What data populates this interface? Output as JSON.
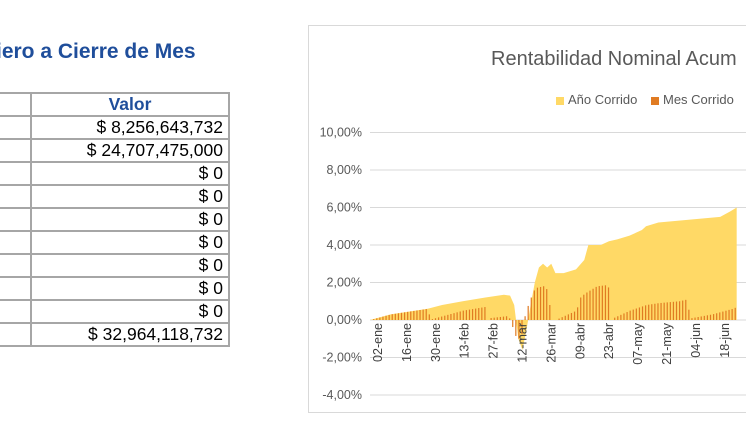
{
  "table": {
    "title": "iero a Cierre de Mes",
    "header": "Valor",
    "rows": [
      "$ 8,256,643,732",
      "$ 24,707,475,000",
      "$ 0",
      "$ 0",
      "$ 0",
      "$ 0",
      "$ 0",
      "$ 0",
      "$ 0",
      "$ 32,964,118,732"
    ]
  },
  "chart_data": {
    "type": "area",
    "title": "Rentabilidad Nominal Acum",
    "legend": [
      {
        "name": "Año Corrido",
        "color": "#FFD966"
      },
      {
        "name": "Mes Corrido",
        "color": "#E07B22"
      }
    ],
    "legend_position": "top",
    "y_ticks": [
      "10,00%",
      "8,00%",
      "6,00%",
      "4,00%",
      "2,00%",
      "0,00%",
      "-2,00%",
      "-4,00%"
    ],
    "ylim": [
      -4,
      10
    ],
    "x_ticks": [
      "02-ene",
      "16-ene",
      "30-ene",
      "13-feb",
      "27-feb",
      "12-mar",
      "26-mar",
      "09-abr",
      "23-abr",
      "07-may",
      "21-may",
      "04-jun",
      "18-jun"
    ],
    "grid": true,
    "series": [
      {
        "name": "Año Corrido",
        "points": [
          [
            0,
            0
          ],
          [
            10,
            0.3
          ],
          [
            28,
            0.6
          ],
          [
            35,
            0.8
          ],
          [
            45,
            1.0
          ],
          [
            56,
            1.2
          ],
          [
            65,
            1.35
          ],
          [
            68,
            1.3
          ],
          [
            70,
            0.8
          ],
          [
            72,
            -1.0
          ],
          [
            74,
            -1.6
          ],
          [
            76,
            -0.5
          ],
          [
            78,
            0.8
          ],
          [
            80,
            2.0
          ],
          [
            82,
            2.8
          ],
          [
            84,
            3.0
          ],
          [
            86,
            2.8
          ],
          [
            88,
            3.0
          ],
          [
            90,
            2.5
          ],
          [
            94,
            2.5
          ],
          [
            100,
            2.7
          ],
          [
            104,
            3.2
          ],
          [
            106,
            4.0
          ],
          [
            112,
            4.0
          ],
          [
            116,
            4.2
          ],
          [
            120,
            4.3
          ],
          [
            126,
            4.5
          ],
          [
            132,
            4.8
          ],
          [
            134,
            5.0
          ],
          [
            140,
            5.2
          ],
          [
            150,
            5.3
          ],
          [
            160,
            5.4
          ],
          [
            170,
            5.5
          ],
          [
            175,
            5.8
          ],
          [
            178,
            6.0
          ]
        ]
      },
      {
        "name": "Mes Corrido",
        "points": [
          [
            0,
            0
          ],
          [
            10,
            0.3
          ],
          [
            28,
            0.6
          ],
          [
            29,
            0
          ],
          [
            30,
            0.05
          ],
          [
            45,
            0.5
          ],
          [
            56,
            0.7
          ],
          [
            57,
            0
          ],
          [
            58,
            0.1
          ],
          [
            66,
            0.2
          ],
          [
            68,
            0.05
          ],
          [
            70,
            -0.8
          ],
          [
            72,
            -1.0
          ],
          [
            73,
            -1.3
          ],
          [
            74,
            -0.2
          ],
          [
            76,
            0.6
          ],
          [
            78,
            1.2
          ],
          [
            80,
            1.7
          ],
          [
            84,
            1.8
          ],
          [
            86,
            1.6
          ],
          [
            88,
            0
          ],
          [
            90,
            0
          ],
          [
            94,
            0.2
          ],
          [
            100,
            0.5
          ],
          [
            102,
            1.2
          ],
          [
            104,
            1.4
          ],
          [
            110,
            1.8
          ],
          [
            114,
            1.85
          ],
          [
            116,
            1.7
          ],
          [
            117,
            0
          ],
          [
            118,
            0.1
          ],
          [
            126,
            0.5
          ],
          [
            134,
            0.8
          ],
          [
            140,
            0.9
          ],
          [
            150,
            1.0
          ],
          [
            154,
            1.1
          ],
          [
            155,
            0
          ],
          [
            156,
            0.1
          ],
          [
            166,
            0.3
          ],
          [
            176,
            0.6
          ],
          [
            178,
            0.7
          ]
        ]
      }
    ]
  }
}
